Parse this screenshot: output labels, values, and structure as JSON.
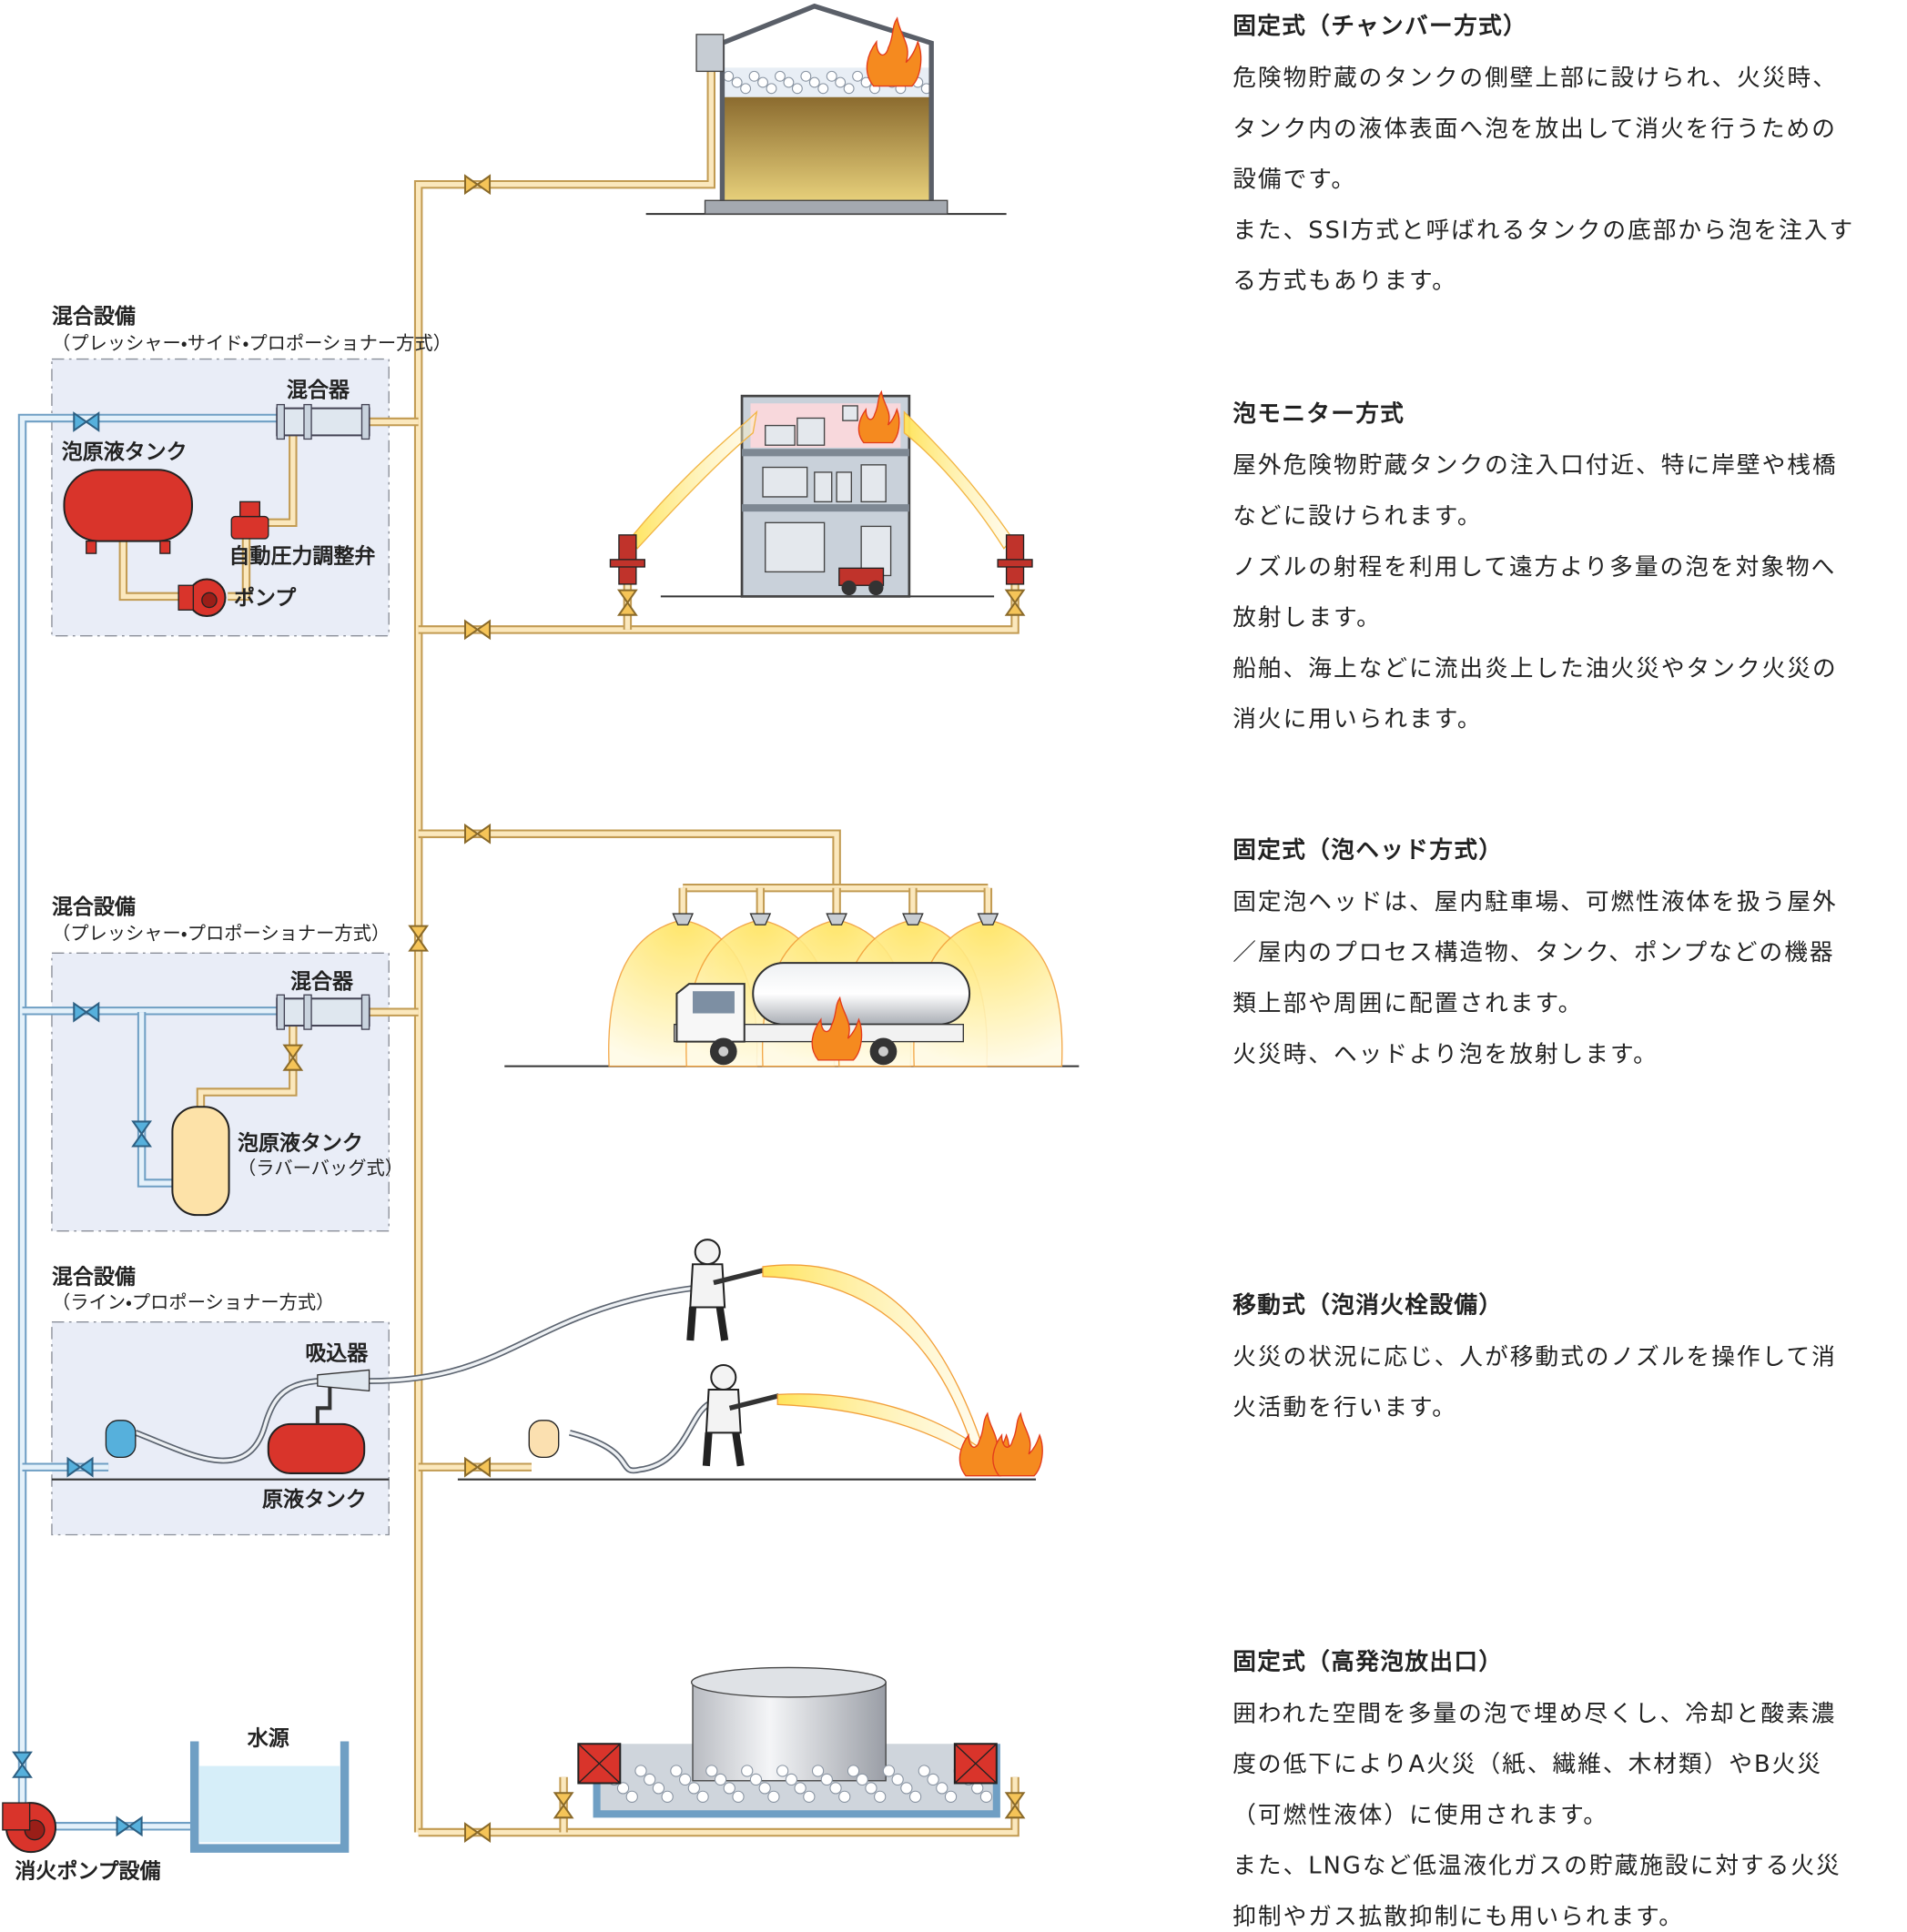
{
  "diagram": {
    "mixers": [
      {
        "title": "混合設備",
        "method": "（プレッシャー・サイド・プロポーショナー方式）",
        "labels": [
          "混合器",
          "泡原液タンク",
          "自動圧力調整弁",
          "ポンプ"
        ]
      },
      {
        "title": "混合設備",
        "method": "（プレッシャー・プロポーショナー方式）",
        "labels": [
          "混合器",
          "泡原液タンク",
          "（ラバーバッグ式）"
        ]
      },
      {
        "title": "混合設備",
        "method": "（ライン・プロポーショナー方式）",
        "labels": [
          "吸込器",
          "原液タンク"
        ]
      }
    ],
    "water_source": "水源",
    "fire_pump": "消火ポンプ設備"
  },
  "sections": [
    {
      "title": "固定式（チャンバー方式）",
      "lines": [
        "危険物貯蔵のタンクの側壁上部に設けられ、火災時、",
        "タンク内の液体表面へ泡を放出して消火を行うための",
        "設備です。",
        "また、SSI方式と呼ばれるタンクの底部から泡を注入す",
        "る方式もあります。"
      ]
    },
    {
      "title": "泡モニター方式",
      "lines": [
        "屋外危険物貯蔵タンクの注入口付近、特に岸壁や桟橋",
        "などに設けられます。",
        "ノズルの射程を利用して遠方より多量の泡を対象物へ",
        "放射します。",
        "船舶、海上などに流出炎上した油火災やタンク火災の",
        "消火に用いられます。"
      ]
    },
    {
      "title": "固定式（泡ヘッド方式）",
      "lines": [
        "固定泡ヘッドは、屋内駐車場、可燃性液体を扱う屋外",
        "／屋内のプロセス構造物、タンク、ポンプなどの機器",
        "類上部や周囲に配置されます。",
        "火災時、ヘッドより泡を放射します。"
      ]
    },
    {
      "title": "移動式（泡消火栓設備）",
      "lines": [
        "火災の状況に応じ、人が移動式のノズルを操作して消",
        "火活動を行います。"
      ]
    },
    {
      "title": "固定式（高発泡放出口）",
      "lines": [
        "囲われた空間を多量の泡で埋め尽くし、冷却と酸素濃",
        "度の低下によりA火災（紙、繊維、木材類）やB火災",
        "（可燃性液体）に使用されます。",
        "また、LNGなど低温液化ガスの貯蔵施設に対する火災",
        "抑制やガス拡散抑制にも用いられます。"
      ]
    }
  ]
}
